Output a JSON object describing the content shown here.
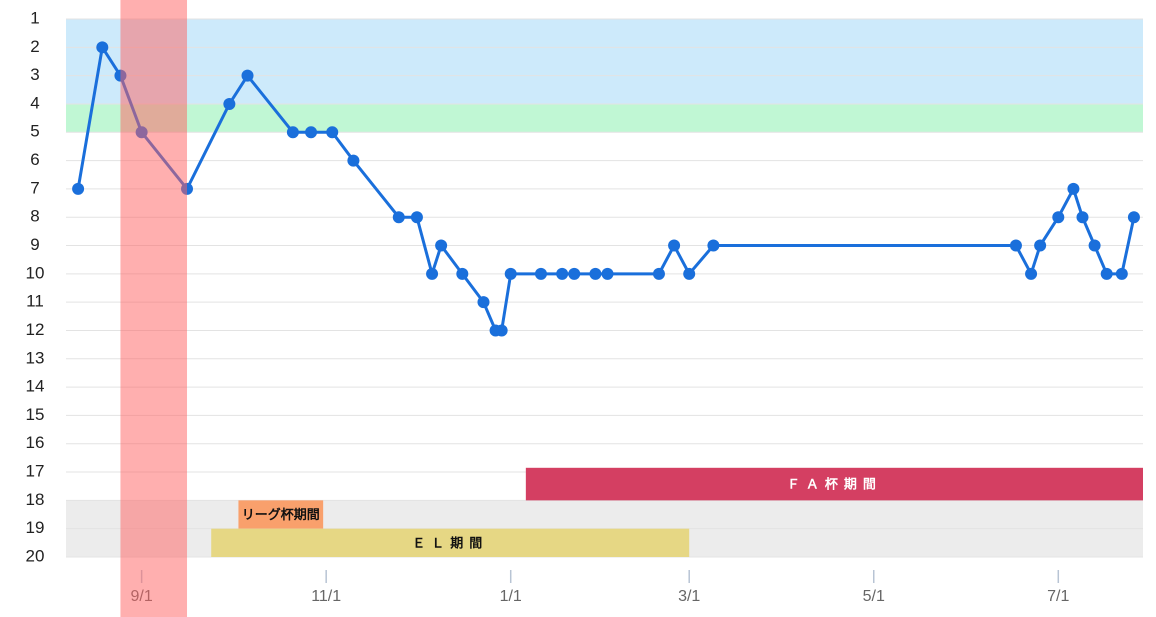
{
  "chart_data": {
    "type": "line",
    "x": [
      "8/11",
      "8/19",
      "8/25",
      "9/1",
      "9/16",
      "9/30",
      "10/6",
      "10/21",
      "10/27",
      "11/3",
      "11/10",
      "11/25",
      "12/1",
      "12/6",
      "12/9",
      "12/16",
      "12/23",
      "12/27",
      "12/29",
      "1/1",
      "1/11",
      "1/18",
      "1/22",
      "1/29",
      "2/2",
      "2/19",
      "2/24",
      "3/1",
      "3/9",
      "6/17",
      "6/22",
      "6/25",
      "7/1",
      "7/6",
      "7/9",
      "7/13",
      "7/17",
      "7/22",
      "7/26"
    ],
    "series": [
      {
        "color": "#1a6fdb",
        "values": [
          7,
          2,
          3,
          5,
          7,
          4,
          3,
          5,
          5,
          5,
          6,
          8,
          8,
          10,
          9,
          10,
          11,
          12,
          12,
          10,
          10,
          10,
          10,
          10,
          10,
          10,
          9,
          10,
          9,
          9,
          10,
          9,
          8,
          7,
          8,
          9,
          10,
          10,
          8
        ]
      }
    ],
    "xlim": [
      "8/7",
      "7/29"
    ],
    "xticks": [
      "9/1",
      "11/1",
      "1/1",
      "3/1",
      "5/1",
      "7/1"
    ],
    "ylim": [
      1,
      20
    ],
    "y_reversed": true,
    "yticks": [
      1,
      2,
      3,
      4,
      5,
      6,
      7,
      8,
      9,
      10,
      11,
      12,
      13,
      14,
      15,
      16,
      17,
      18,
      19,
      20
    ],
    "grid": true,
    "zones": [
      {
        "range": [
          1,
          4
        ],
        "color": "#cdeafb"
      },
      {
        "range": [
          4,
          5
        ],
        "color": "#c0f7d4"
      },
      {
        "range": [
          18,
          20
        ],
        "color": "#ececec"
      }
    ],
    "highlight": {
      "start": "8/25",
      "end": "9/16",
      "color": "rgba(255,95,95,0.5)"
    },
    "periods": [
      {
        "label": "ＦＡ杯期間",
        "start": "1/6",
        "end": "7/29",
        "range": [
          16.85,
          18
        ],
        "color": "#d43f62",
        "text_color": "#ffffff"
      },
      {
        "label": "リーグ杯期間",
        "start": "10/3",
        "end": "10/31",
        "range": [
          18,
          19
        ],
        "color": "#f9a06c",
        "text_color": "#111111"
      },
      {
        "label": "ＥＬ期間",
        "start": "9/24",
        "end": "3/1",
        "range": [
          19,
          20
        ],
        "color": "#e6d784",
        "text_color": "#111111"
      }
    ]
  }
}
